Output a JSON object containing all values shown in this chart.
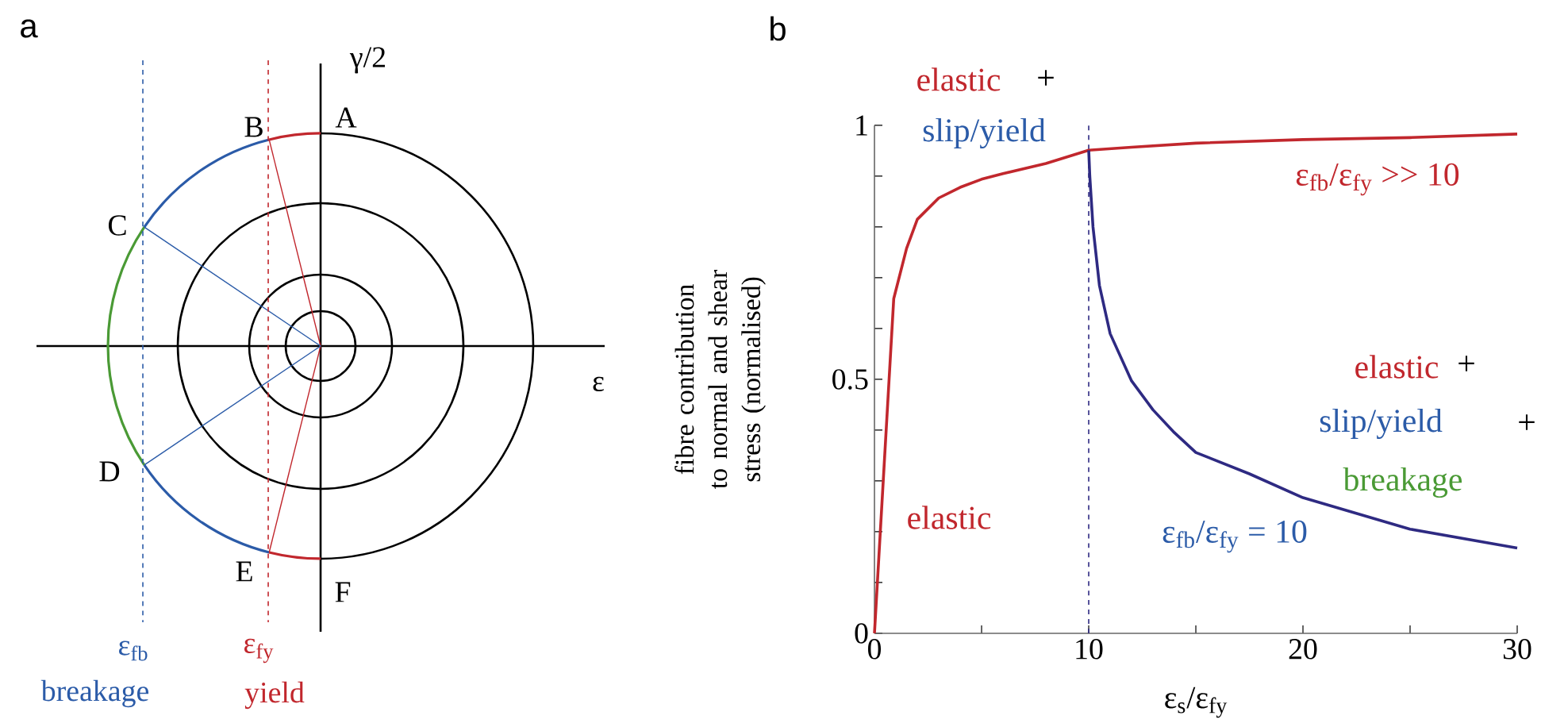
{
  "chart_data": [
    {
      "type": "other",
      "title": "a",
      "annotations": [
        "γ/2",
        "ε",
        "A",
        "B",
        "C",
        "D",
        "E",
        "F",
        "ε$_{fb}$",
        "breakage",
        "ε$_{fy}$",
        "yield"
      ]
    },
    {
      "type": "line",
      "title": "b",
      "xlabel": "ε$_{s}$/ε$_{fy}$",
      "ylabel": "fibre contribution to normal and shear stress (normalised)",
      "xlim": [
        0,
        30
      ],
      "ylim": [
        0,
        1
      ],
      "xticks": [
        0,
        {
          "value": 5,
          "label": null
        },
        10,
        {
          "value": 15,
          "label": null
        },
        20,
        {
          "value": 25,
          "label": null
        },
        30
      ],
      "yticks": [
        0,
        {
          "value": 0.1,
          "label": null
        },
        {
          "value": 0.2,
          "label": null
        },
        {
          "value": 0.3,
          "label": null
        },
        {
          "value": 0.4,
          "label": null
        },
        0.5,
        {
          "value": 0.6,
          "label": null
        },
        {
          "value": 0.7,
          "label": null
        },
        {
          "value": 0.8,
          "label": null
        },
        {
          "value": 0.9,
          "label": null
        },
        1
      ],
      "marker": "none",
      "line_style": "solid",
      "series": [
        {
          "name": "ε$_{fb}$/ε$_{fy}$ >> 10",
          "color": "#c1272d",
          "x": [
            0,
            0.9,
            1.5,
            2,
            3,
            4,
            5,
            6,
            8,
            10,
            12,
            15,
            20,
            25,
            30
          ],
          "values": [
            0,
            0.659,
            0.758,
            0.815,
            0.857,
            0.878,
            0.894,
            0.905,
            0.925,
            0.951,
            0.957,
            0.965,
            0.972,
            0.976,
            0.983
          ]
        },
        {
          "name": "ε$_{fb}$/ε$_{fy}$ = 10",
          "color": "#2e2a82",
          "x": [
            10,
            10.05,
            10.2,
            10.5,
            11,
            12,
            13,
            14,
            15,
            17.5,
            20,
            25,
            30
          ],
          "values": [
            0.951,
            0.9,
            0.8,
            0.685,
            0.59,
            0.497,
            0.44,
            0.395,
            0.356,
            0.314,
            0.267,
            0.205,
            0.168
          ]
        }
      ],
      "ref_lines": [
        {
          "axis": "x",
          "value": 10,
          "color": "#2e2a82",
          "line_style": "dashed"
        }
      ],
      "annotations": [
        "elastic",
        "+",
        "slip/yield",
        "elastic",
        "+",
        "slip/yield",
        "+",
        "breakage",
        "elastic"
      ]
    }
  ]
}
